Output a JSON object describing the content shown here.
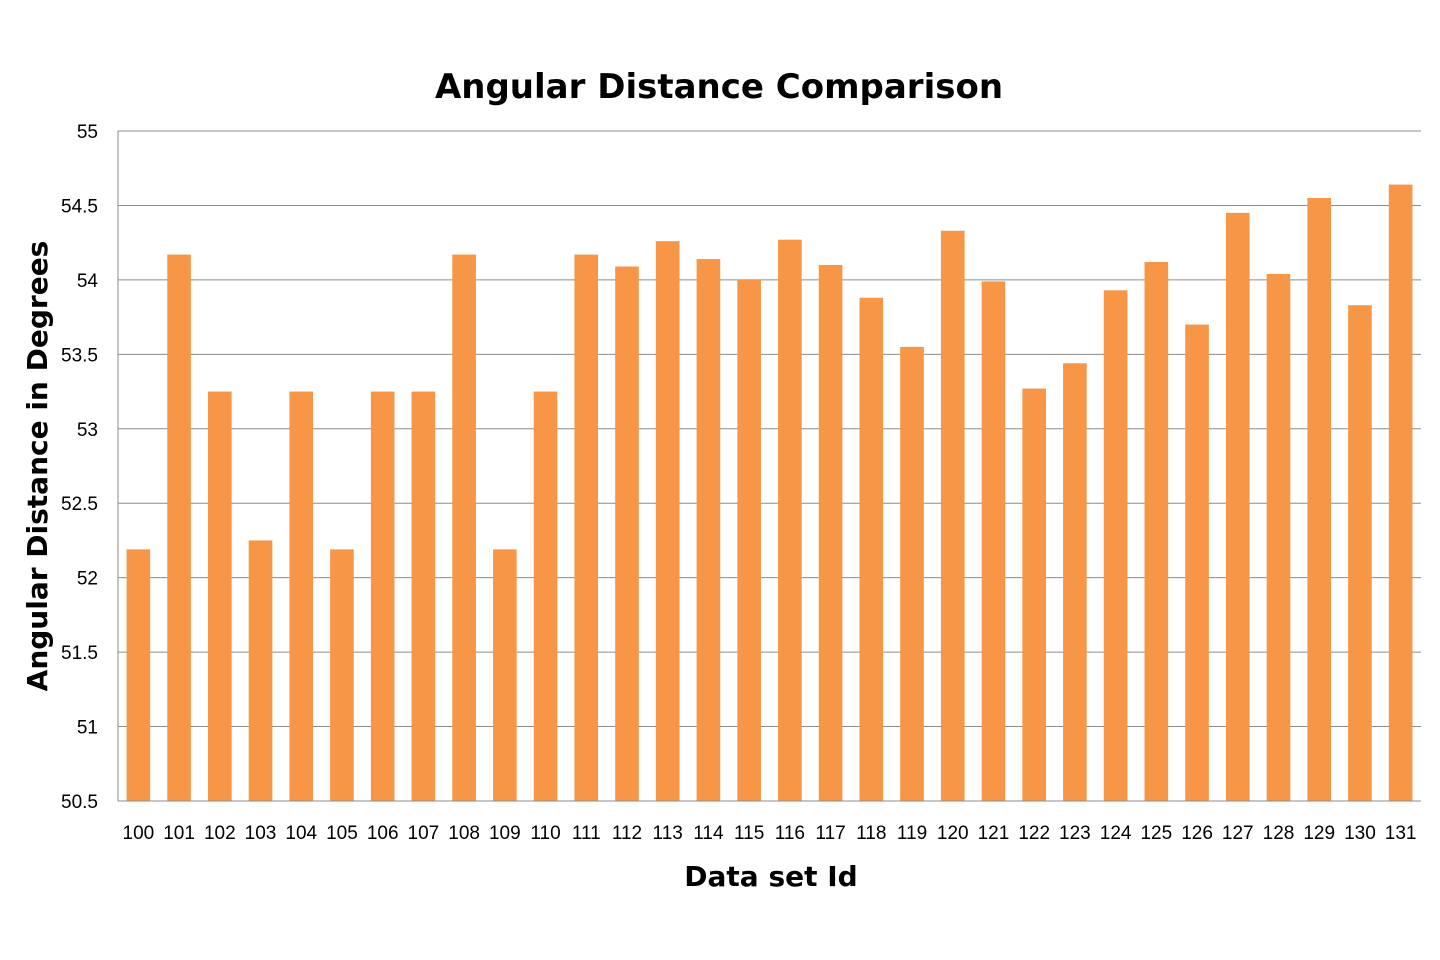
{
  "chart_data": {
    "type": "bar",
    "title": "Angular Distance Comparison",
    "xlabel": "Data set Id",
    "ylabel": "Angular Distance in Degrees",
    "ylim": [
      50.5,
      55
    ],
    "yticks": [
      "50.5",
      "51",
      "51.5",
      "52",
      "52.5",
      "53",
      "53.5",
      "54",
      "54.5",
      "55"
    ],
    "grid": true,
    "bar_color": "#f79646",
    "categories": [
      "100",
      "101",
      "102",
      "103",
      "104",
      "105",
      "106",
      "107",
      "108",
      "109",
      "110",
      "111",
      "112",
      "113",
      "114",
      "115",
      "116",
      "117",
      "118",
      "119",
      "120",
      "121",
      "122",
      "123",
      "124",
      "125",
      "126",
      "127",
      "128",
      "129",
      "130",
      "131"
    ],
    "values": [
      52.19,
      54.17,
      53.25,
      52.25,
      53.25,
      52.19,
      53.25,
      53.25,
      54.17,
      52.19,
      53.25,
      54.17,
      54.09,
      54.26,
      54.14,
      54.0,
      54.27,
      54.1,
      53.88,
      53.55,
      54.33,
      53.99,
      53.27,
      53.44,
      53.93,
      54.12,
      53.7,
      54.45,
      54.04,
      54.55,
      53.83,
      54.64
    ]
  }
}
